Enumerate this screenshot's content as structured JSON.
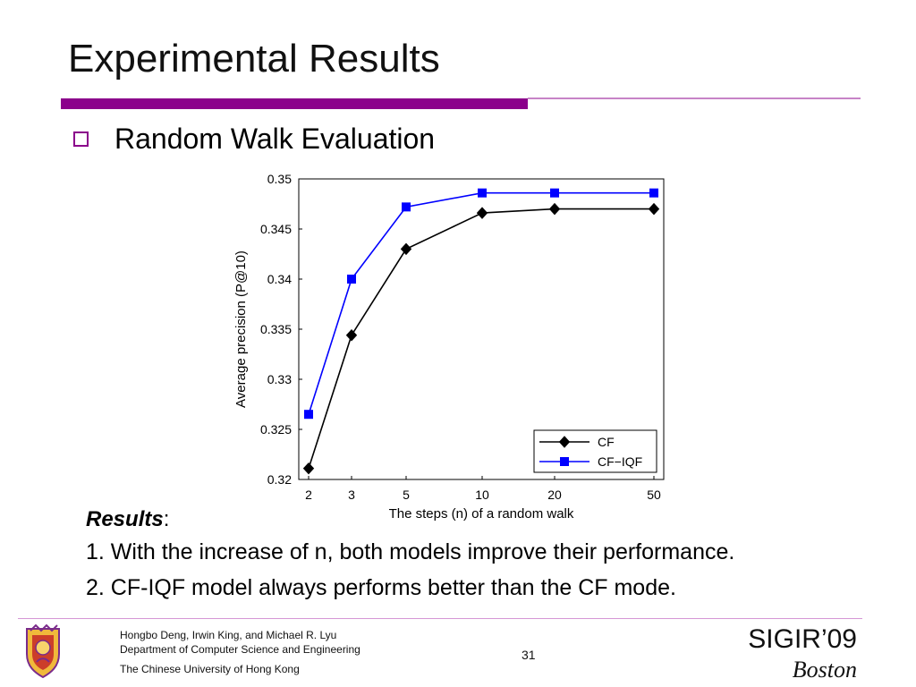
{
  "slide": {
    "title": "Experimental Results",
    "bullet": "Random Walk Evaluation",
    "results_heading": "Results",
    "results_colon": ":",
    "result_lines": [
      "1. With the increase of n, both models improve their performance.",
      "2. CF-IQF model always performs better than the CF mode."
    ],
    "footer": {
      "authors": "Hongbo Deng, Irwin King, and Michael R. Lyu",
      "department": "Department of Computer Science and Engineering",
      "university": "The Chinese University of Hong Kong",
      "page_number": "31",
      "conference": "SIGIR’09",
      "city": "Boston"
    },
    "colors": {
      "accent": "#8b008b",
      "accent_light": "#d596d5",
      "cf": "#000000",
      "cf_iqf": "#0000ff"
    }
  },
  "chart_data": {
    "type": "line",
    "title": "",
    "xlabel": "The steps (n) of a random walk",
    "ylabel": "Average precision (P@10)",
    "categories": [
      "2",
      "3",
      "5",
      "10",
      "20",
      "50"
    ],
    "ylim": [
      0.32,
      0.35
    ],
    "yticks": [
      "0.35",
      "0.345",
      "0.34",
      "0.335",
      "0.33",
      "0.325",
      "0.32"
    ],
    "grid": true,
    "legend": "bottom-right",
    "series": [
      {
        "name": "CF",
        "color": "#000000",
        "marker": "diamond",
        "values": [
          0.3211,
          0.3344,
          0.343,
          0.3466,
          0.347,
          0.347
        ]
      },
      {
        "name": "CF−IQF",
        "color": "#0000ff",
        "marker": "square",
        "values": [
          0.3265,
          0.34,
          0.3472,
          0.3486,
          0.3486,
          0.3486
        ]
      }
    ]
  }
}
